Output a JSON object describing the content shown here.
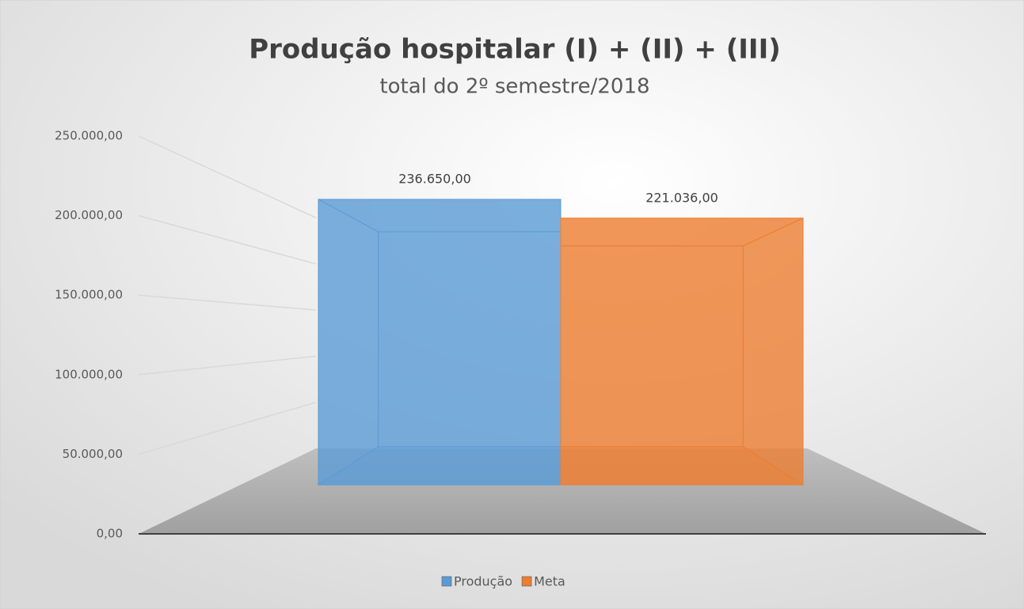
{
  "chart_data": {
    "type": "bar3d",
    "title": "Produção hospitalar (I) + (II) + (III)",
    "subtitle": "total do 2º semestre/2018",
    "categories": [
      null
    ],
    "series": [
      {
        "name": "Produção",
        "color": "#5b9bd5",
        "values": [
          236650
        ],
        "value_labels": [
          "236.650,00"
        ]
      },
      {
        "name": "Meta",
        "color": "#ed7d31",
        "values": [
          221036
        ],
        "value_labels": [
          "221.036,00"
        ]
      }
    ],
    "ylim": [
      0,
      250000
    ],
    "yticks": [
      {
        "value": 0,
        "label": "0,00"
      },
      {
        "value": 50000,
        "label": "50.000,00"
      },
      {
        "value": 100000,
        "label": "100.000,00"
      },
      {
        "value": 150000,
        "label": "150.000,00"
      },
      {
        "value": 200000,
        "label": "200.000,00"
      },
      {
        "value": 250000,
        "label": "250.000,00"
      }
    ],
    "grid": true,
    "legend": "bottom"
  }
}
